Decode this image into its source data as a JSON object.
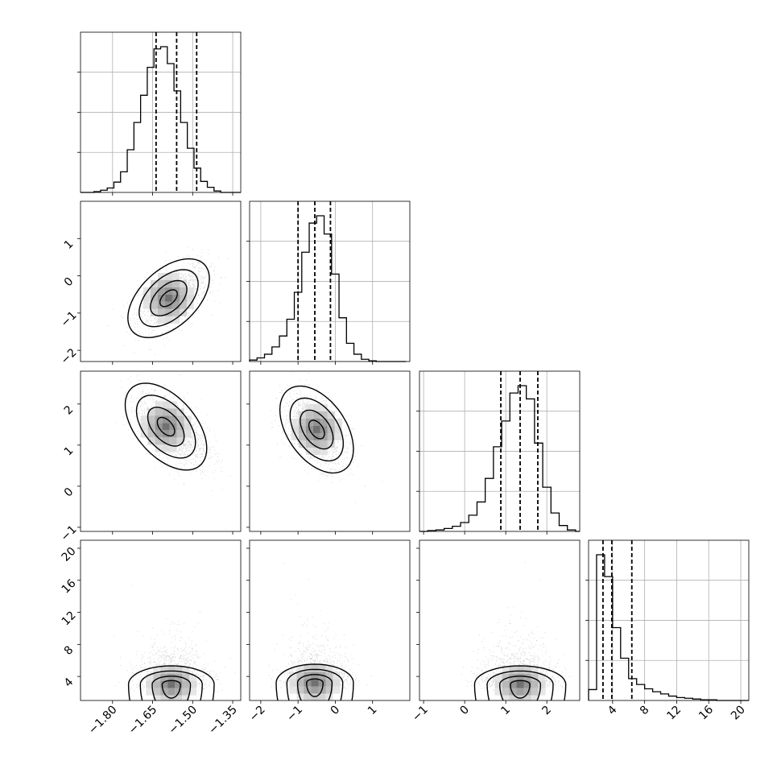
{
  "chart_data": {
    "type": "corner",
    "grid": true,
    "quantiles_shown": [
      0.16,
      0.5,
      0.84
    ],
    "parameters": [
      {
        "index": 0,
        "range": [
          -1.92,
          -1.32
        ],
        "ticks": [
          -1.8,
          -1.65,
          -1.5,
          -1.35
        ],
        "tick_labels": [
          "−1.80",
          "−1.65",
          "−1.50",
          "−1.35"
        ],
        "quantile_lines": [
          -1.637,
          -1.56,
          -1.485
        ],
        "hist": {
          "bin_edges": [
            -1.92,
            -1.895,
            -1.87,
            -1.845,
            -1.82,
            -1.795,
            -1.77,
            -1.745,
            -1.72,
            -1.695,
            -1.67,
            -1.645,
            -1.62,
            -1.595,
            -1.57,
            -1.545,
            -1.52,
            -1.495,
            -1.47,
            -1.445,
            -1.42,
            -1.395,
            -1.37,
            -1.345,
            -1.32
          ],
          "counts": [
            0,
            0,
            1,
            3,
            6,
            14,
            28,
            58,
            95,
            132,
            170,
            195,
            198,
            175,
            138,
            95,
            60,
            33,
            15,
            7,
            2,
            0,
            0,
            0
          ]
        }
      },
      {
        "index": 1,
        "range": [
          -2.3,
          2.0
        ],
        "ticks": [
          -2,
          -1,
          0,
          1
        ],
        "tick_labels": [
          "−2",
          "−1",
          "0",
          "1"
        ],
        "quantile_lines": [
          -1.0,
          -0.55,
          -0.13
        ],
        "hist": {
          "bin_edges": [
            -2.3,
            -2.1,
            -1.9,
            -1.7,
            -1.5,
            -1.3,
            -1.1,
            -0.9,
            -0.7,
            -0.5,
            -0.3,
            -0.1,
            0.1,
            0.3,
            0.5,
            0.7,
            0.9,
            1.1,
            1.3,
            1.5,
            1.7,
            1.9
          ],
          "counts": [
            2,
            5,
            10,
            20,
            35,
            58,
            95,
            150,
            190,
            200,
            175,
            120,
            60,
            25,
            10,
            3,
            1,
            0,
            0,
            0,
            0
          ]
        }
      },
      {
        "index": 2,
        "range": [
          -1.1,
          2.8
        ],
        "ticks": [
          -1,
          0,
          1,
          2
        ],
        "tick_labels": [
          "−1",
          "0",
          "1",
          "2"
        ],
        "quantile_lines": [
          0.88,
          1.35,
          1.78
        ],
        "hist": {
          "bin_edges": [
            -1.1,
            -0.9,
            -0.7,
            -0.5,
            -0.3,
            -0.1,
            0.1,
            0.3,
            0.5,
            0.7,
            0.9,
            1.1,
            1.3,
            1.5,
            1.7,
            1.9,
            2.1,
            2.3,
            2.5,
            2.7,
            2.8
          ],
          "counts": [
            0,
            1,
            2,
            4,
            7,
            12,
            22,
            40,
            72,
            115,
            150,
            188,
            198,
            180,
            120,
            60,
            25,
            8,
            2,
            0
          ]
        }
      },
      {
        "index": 3,
        "range": [
          1.0,
          21.0
        ],
        "ticks": [
          4,
          8,
          12,
          16,
          20
        ],
        "tick_labels": [
          "4",
          "8",
          "12",
          "16",
          "20"
        ],
        "quantile_lines": [
          2.8,
          3.9,
          6.4
        ],
        "hist": {
          "bin_edges": [
            1,
            2,
            3,
            4,
            5,
            6,
            7,
            8,
            9,
            10,
            11,
            12,
            13,
            14,
            15,
            16,
            17,
            18,
            19,
            20,
            21
          ],
          "counts": [
            15,
            200,
            170,
            100,
            58,
            30,
            22,
            16,
            12,
            9,
            6,
            4,
            3,
            2,
            1,
            1,
            0,
            0,
            0,
            0
          ]
        }
      }
    ],
    "pairs": [
      {
        "row": 1,
        "col": 0,
        "mean": [
          -1.575,
          -0.55
        ],
        "sd": [
          0.065,
          0.45
        ],
        "rho": 0.5,
        "peak": [
          -1.59,
          -0.6
        ]
      },
      {
        "row": 2,
        "col": 0,
        "mean": [
          -1.575,
          1.4
        ],
        "sd": [
          0.065,
          0.45
        ],
        "rho": -0.5,
        "peak": [
          -1.6,
          1.45
        ]
      },
      {
        "row": 2,
        "col": 1,
        "mean": [
          -0.55,
          1.35
        ],
        "sd": [
          0.42,
          0.45
        ],
        "rho": -0.45,
        "peak": [
          -0.5,
          1.38
        ]
      },
      {
        "row": 3,
        "col": 0,
        "mean": [
          -1.575,
          4.0
        ],
        "sd": [
          0.065,
          2.4
        ],
        "rho": 0.0,
        "peak": [
          -1.58,
          3.0
        ]
      },
      {
        "row": 3,
        "col": 1,
        "mean": [
          -0.55,
          4.0
        ],
        "sd": [
          0.42,
          2.4
        ],
        "rho": 0.0,
        "peak": [
          -0.55,
          3.2
        ]
      },
      {
        "row": 3,
        "col": 2,
        "mean": [
          1.3,
          4.0
        ],
        "sd": [
          0.45,
          2.4
        ],
        "rho": 0.0,
        "peak": [
          1.35,
          3.0
        ]
      }
    ]
  }
}
